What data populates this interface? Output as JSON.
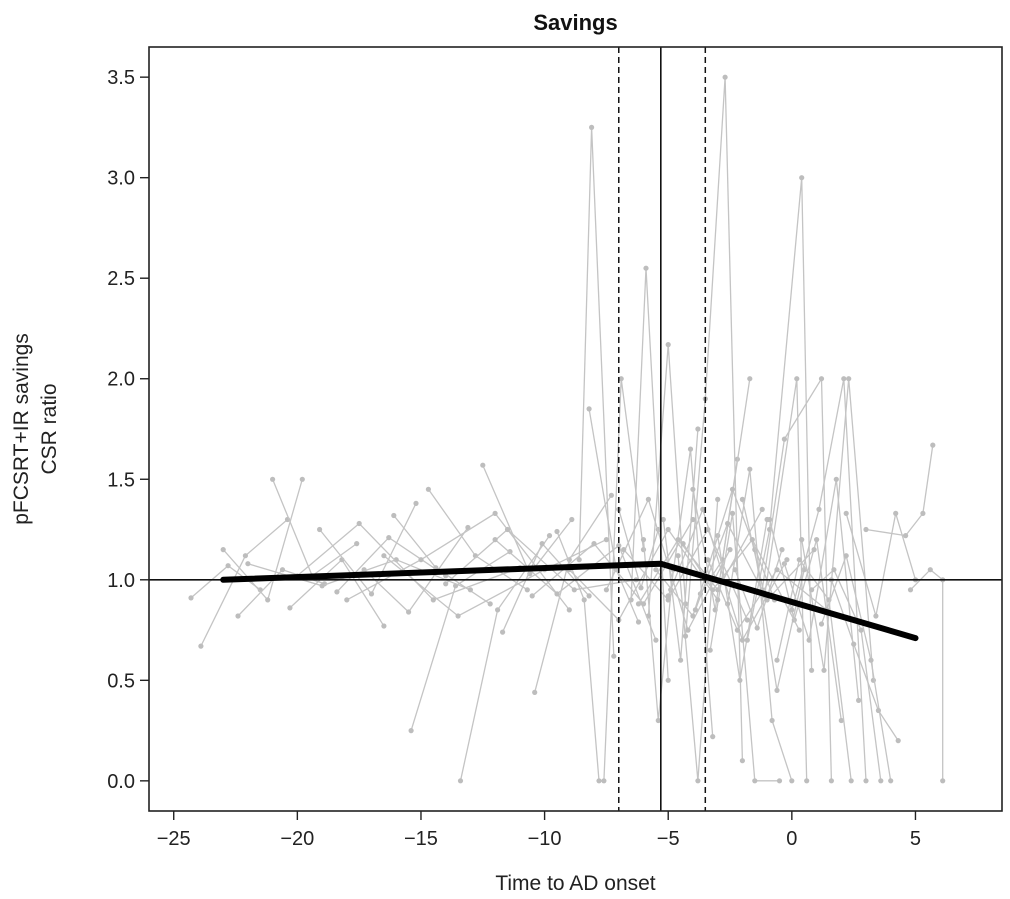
{
  "chart_data": {
    "type": "line",
    "title": "Savings",
    "xlabel": "Time to AD onset",
    "ylabel_lines": [
      "pFCSRT+IR savings",
      "CSR ratio"
    ],
    "xlim": [
      -26,
      8.5
    ],
    "ylim": [
      -0.15,
      3.65
    ],
    "x_ticks": [
      -25,
      -20,
      -15,
      -10,
      -5,
      0,
      5
    ],
    "x_tick_labels": [
      "−25",
      "−20",
      "−15",
      "−10",
      "−5",
      "0",
      "5"
    ],
    "y_ticks": [
      0.0,
      0.5,
      1.0,
      1.5,
      2.0,
      2.5,
      3.0,
      3.5
    ],
    "y_tick_labels": [
      "0.0",
      "0.5",
      "1.0",
      "1.5",
      "2.0",
      "2.5",
      "3.0",
      "3.5"
    ],
    "reference_lines": {
      "horizontal": [
        1.0
      ],
      "vertical_solid": [
        -5.3
      ],
      "vertical_dashed": [
        -7.0,
        -3.5
      ]
    },
    "fit_line": {
      "x": [
        -23.0,
        -5.3,
        5.0
      ],
      "y": [
        1.0,
        1.08,
        0.71
      ]
    },
    "individual_trajectories": [
      [
        [
          -24.3,
          0.91
        ],
        [
          -22.8,
          1.07
        ],
        [
          -21.5,
          0.95
        ]
      ],
      [
        [
          -23.9,
          0.67
        ],
        [
          -22.1,
          1.12
        ],
        [
          -20.4,
          1.3
        ]
      ],
      [
        [
          -23.0,
          1.15
        ],
        [
          -21.2,
          0.9
        ],
        [
          -19.8,
          1.5
        ]
      ],
      [
        [
          -22.4,
          0.82
        ],
        [
          -20.6,
          1.05
        ],
        [
          -18.9,
          0.98
        ]
      ],
      [
        [
          -21.0,
          1.5
        ],
        [
          -19.4,
          1.02
        ],
        [
          -17.6,
          1.18
        ]
      ],
      [
        [
          -20.3,
          0.86
        ],
        [
          -18.2,
          1.1
        ],
        [
          -16.5,
          0.77
        ]
      ],
      [
        [
          -19.1,
          1.25
        ],
        [
          -17.0,
          0.93
        ],
        [
          -15.2,
          1.38
        ]
      ],
      [
        [
          -18.4,
          0.94
        ],
        [
          -16.3,
          1.21
        ],
        [
          -14.0,
          1.02
        ]
      ],
      [
        [
          -17.3,
          1.05
        ],
        [
          -15.5,
          0.84
        ],
        [
          -13.1,
          1.26
        ]
      ],
      [
        [
          -16.1,
          1.32
        ],
        [
          -14.4,
          1.06
        ],
        [
          -12.2,
          0.88
        ]
      ],
      [
        [
          -15.4,
          0.25
        ],
        [
          -13.6,
          0.97
        ],
        [
          -11.4,
          1.14
        ]
      ],
      [
        [
          -14.7,
          1.45
        ],
        [
          -12.8,
          1.12
        ],
        [
          -10.7,
          0.95
        ]
      ],
      [
        [
          -13.4,
          0.0
        ],
        [
          -11.9,
          0.85
        ],
        [
          -9.8,
          1.22
        ]
      ],
      [
        [
          -12.5,
          1.57
        ],
        [
          -10.6,
          1.03
        ],
        [
          -8.9,
          1.3
        ]
      ],
      [
        [
          -11.7,
          0.74
        ],
        [
          -10.1,
          1.18
        ],
        [
          -8.2,
          0.92
        ]
      ],
      [
        [
          -10.4,
          0.44
        ],
        [
          -9.0,
          1.1
        ],
        [
          -7.3,
          1.42
        ]
      ],
      [
        [
          -9.5,
          1.24
        ],
        [
          -8.4,
          0.9
        ],
        [
          -7.8,
          0.0
        ]
      ],
      [
        [
          -8.6,
          1.1
        ],
        [
          -8.1,
          3.25
        ],
        [
          -7.2,
          0.62
        ]
      ],
      [
        [
          -8.2,
          1.85
        ],
        [
          -7.1,
          1.05
        ],
        [
          -6.2,
          0.79
        ]
      ],
      [
        [
          -7.6,
          0.0
        ],
        [
          -6.9,
          2.0
        ],
        [
          -6.0,
          1.15
        ]
      ],
      [
        [
          -7.0,
          1.35
        ],
        [
          -6.1,
          0.96
        ],
        [
          -5.4,
          1.25
        ]
      ],
      [
        [
          -6.5,
          0.9
        ],
        [
          -5.9,
          2.55
        ],
        [
          -5.0,
          0.5
        ]
      ],
      [
        [
          -6.0,
          1.2
        ],
        [
          -5.4,
          0.3
        ],
        [
          -4.8,
          1.05
        ]
      ],
      [
        [
          -5.8,
          0.82
        ],
        [
          -5.0,
          2.17
        ],
        [
          -4.3,
          0.88
        ]
      ],
      [
        [
          -5.2,
          1.3
        ],
        [
          -4.5,
          0.6
        ],
        [
          -3.8,
          1.75
        ]
      ],
      [
        [
          -4.9,
          0.95
        ],
        [
          -4.1,
          1.65
        ],
        [
          -3.2,
          0.22
        ]
      ],
      [
        [
          -4.6,
          1.12
        ],
        [
          -3.8,
          0.0
        ],
        [
          -3.0,
          1.4
        ]
      ],
      [
        [
          -4.3,
          0.72
        ],
        [
          -3.5,
          1.9
        ],
        [
          -2.7,
          3.5
        ],
        [
          -2.0,
          0.1
        ]
      ],
      [
        [
          -4.0,
          1.45
        ],
        [
          -3.1,
          0.85
        ],
        [
          -2.2,
          1.6
        ]
      ],
      [
        [
          -3.7,
          0.93
        ],
        [
          -2.8,
          1.1
        ],
        [
          -1.7,
          2.0
        ]
      ],
      [
        [
          -3.3,
          0.65
        ],
        [
          -2.4,
          1.33
        ],
        [
          -1.5,
          0.0
        ],
        [
          -0.5,
          0.0
        ]
      ],
      [
        [
          -3.0,
          1.22
        ],
        [
          -2.1,
          0.5
        ],
        [
          -1.0,
          1.3
        ]
      ],
      [
        [
          -2.6,
          0.88
        ],
        [
          -1.7,
          1.55
        ],
        [
          -0.8,
          0.3
        ],
        [
          0.0,
          0.0
        ]
      ],
      [
        [
          -2.3,
          1.05
        ],
        [
          -1.4,
          0.76
        ],
        [
          -0.4,
          1.15
        ]
      ],
      [
        [
          -2.0,
          1.4
        ],
        [
          -1.1,
          0.92
        ],
        [
          0.2,
          2.0
        ],
        [
          0.6,
          0.0
        ]
      ],
      [
        [
          -1.8,
          0.7
        ],
        [
          -0.9,
          1.25
        ],
        [
          0.4,
          3.0
        ],
        [
          0.8,
          0.55
        ]
      ],
      [
        [
          -1.5,
          1.15
        ],
        [
          -0.6,
          0.45
        ],
        [
          0.5,
          1.05
        ]
      ],
      [
        [
          -1.2,
          0.95
        ],
        [
          -0.3,
          1.7
        ],
        [
          1.2,
          2.0
        ],
        [
          1.6,
          0.0
        ]
      ],
      [
        [
          -0.9,
          1.3
        ],
        [
          0.1,
          0.8
        ],
        [
          1.0,
          1.2
        ],
        [
          2.0,
          0.3
        ]
      ],
      [
        [
          -0.6,
          0.6
        ],
        [
          0.3,
          1.1
        ],
        [
          1.5,
          0.9
        ],
        [
          2.4,
          0.0
        ]
      ],
      [
        [
          -0.3,
          1.08
        ],
        [
          0.7,
          0.7
        ],
        [
          1.8,
          1.5
        ],
        [
          2.7,
          0.4
        ]
      ],
      [
        [
          0.0,
          0.85
        ],
        [
          1.1,
          1.35
        ],
        [
          2.1,
          2.0
        ],
        [
          3.0,
          0.0
        ]
      ],
      [
        [
          0.4,
          1.2
        ],
        [
          1.3,
          0.55
        ],
        [
          2.3,
          2.0
        ],
        [
          3.3,
          0.5
        ]
      ],
      [
        [
          0.8,
          0.95
        ],
        [
          1.7,
          1.05
        ],
        [
          2.8,
          0.75
        ],
        [
          3.6,
          0.0
        ]
      ],
      [
        [
          1.2,
          0.78
        ],
        [
          2.2,
          1.12
        ],
        [
          3.2,
          0.6
        ],
        [
          4.0,
          0.0
        ]
      ],
      [
        [
          1.6,
          1.0
        ],
        [
          2.5,
          0.68
        ],
        [
          3.5,
          0.35
        ],
        [
          4.3,
          0.2
        ]
      ],
      [
        [
          2.2,
          1.33
        ],
        [
          3.4,
          0.82
        ],
        [
          4.2,
          1.33
        ],
        [
          5.0,
          1.0
        ]
      ],
      [
        [
          3.0,
          1.25
        ],
        [
          4.6,
          1.22
        ],
        [
          5.3,
          1.33
        ],
        [
          5.7,
          1.67
        ]
      ],
      [
        [
          4.8,
          0.95
        ],
        [
          5.6,
          1.05
        ],
        [
          6.1,
          1.0
        ],
        [
          6.1,
          0.0
        ]
      ],
      [
        [
          -22.0,
          1.08
        ],
        [
          -19.0,
          0.97
        ],
        [
          -16.0,
          1.1
        ],
        [
          -13.0,
          0.95
        ]
      ],
      [
        [
          -20.0,
          1.02
        ],
        [
          -17.5,
          1.28
        ],
        [
          -14.5,
          0.9
        ],
        [
          -11.0,
          1.06
        ]
      ],
      [
        [
          -18.0,
          0.9
        ],
        [
          -15.0,
          1.1
        ],
        [
          -12.0,
          1.33
        ],
        [
          -9.0,
          0.85
        ]
      ],
      [
        [
          -16.5,
          1.12
        ],
        [
          -13.5,
          0.82
        ],
        [
          -10.0,
          1.05
        ],
        [
          -7.5,
          1.2
        ]
      ],
      [
        [
          -14.0,
          0.98
        ],
        [
          -11.5,
          1.25
        ],
        [
          -8.8,
          0.95
        ],
        [
          -6.3,
          1.0
        ]
      ],
      [
        [
          -12.0,
          1.2
        ],
        [
          -9.5,
          0.93
        ],
        [
          -7.0,
          1.17
        ],
        [
          -5.5,
          0.7
        ]
      ],
      [
        [
          -10.5,
          0.92
        ],
        [
          -8.0,
          1.18
        ],
        [
          -6.0,
          0.88
        ],
        [
          -4.0,
          1.3
        ]
      ],
      [
        [
          -9.0,
          1.05
        ],
        [
          -7.0,
          0.8
        ],
        [
          -5.0,
          1.25
        ],
        [
          -3.0,
          0.9
        ]
      ],
      [
        [
          -7.5,
          0.95
        ],
        [
          -5.8,
          1.4
        ],
        [
          -4.2,
          0.75
        ],
        [
          -2.5,
          1.15
        ]
      ],
      [
        [
          -6.8,
          1.15
        ],
        [
          -5.0,
          0.9
        ],
        [
          -3.4,
          1.25
        ],
        [
          -1.8,
          0.8
        ]
      ],
      [
        [
          -6.2,
          0.88
        ],
        [
          -4.6,
          1.2
        ],
        [
          -3.0,
          0.95
        ],
        [
          -1.2,
          1.35
        ]
      ],
      [
        [
          -5.5,
          1.05
        ],
        [
          -4.0,
          0.82
        ],
        [
          -2.4,
          1.45
        ],
        [
          -0.7,
          0.9
        ]
      ],
      [
        [
          -5.0,
          0.92
        ],
        [
          -3.6,
          1.35
        ],
        [
          -2.0,
          0.7
        ],
        [
          -0.2,
          1.1
        ]
      ],
      [
        [
          -4.4,
          1.18
        ],
        [
          -3.2,
          0.95
        ],
        [
          -1.6,
          1.2
        ],
        [
          0.3,
          0.75
        ]
      ],
      [
        [
          -3.9,
          0.85
        ],
        [
          -2.6,
          1.28
        ],
        [
          -1.0,
          0.9
        ],
        [
          0.9,
          1.15
        ]
      ],
      [
        [
          -3.4,
          1.1
        ],
        [
          -2.2,
          0.75
        ],
        [
          -0.6,
          1.05
        ],
        [
          1.4,
          0.85
        ]
      ]
    ]
  }
}
